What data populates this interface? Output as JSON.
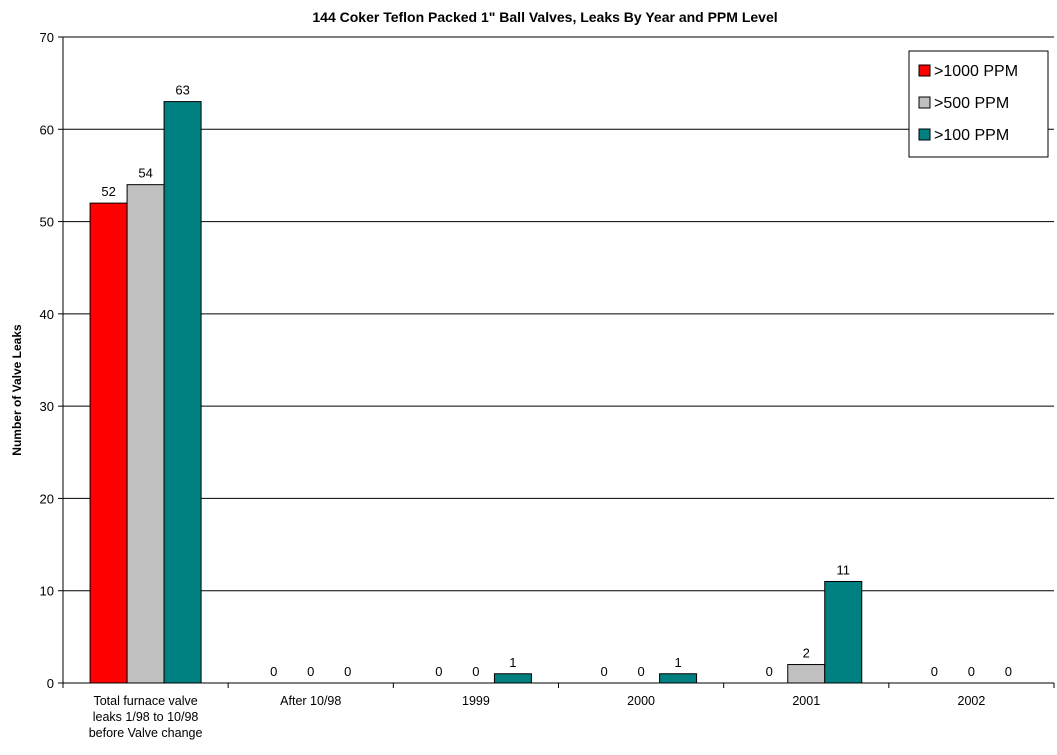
{
  "chart_data": {
    "type": "bar",
    "title": "144 Coker Teflon Packed 1\" Ball Valves, Leaks By Year and PPM Level",
    "xlabel": "",
    "ylabel": "Number of Valve Leaks",
    "ylim": [
      0,
      70
    ],
    "yticks": [
      0,
      10,
      20,
      30,
      40,
      50,
      60,
      70
    ],
    "grid": true,
    "legend_position": "top-right",
    "categories": [
      [
        "Total furnace valve",
        "leaks 1/98 to 10/98",
        "before Valve change"
      ],
      [
        "After 10/98"
      ],
      [
        "1999"
      ],
      [
        "2000"
      ],
      [
        "2001"
      ],
      [
        "2002"
      ]
    ],
    "series": [
      {
        "name": ">1000 PPM",
        "color": "#ff0000",
        "values": [
          52,
          0,
          0,
          0,
          0,
          0
        ]
      },
      {
        "name": ">500 PPM",
        "color": "#c0c0c0",
        "values": [
          54,
          0,
          0,
          0,
          2,
          0
        ]
      },
      {
        "name": ">100 PPM",
        "color": "#008080",
        "values": [
          63,
          0,
          1,
          1,
          11,
          0
        ]
      }
    ]
  }
}
